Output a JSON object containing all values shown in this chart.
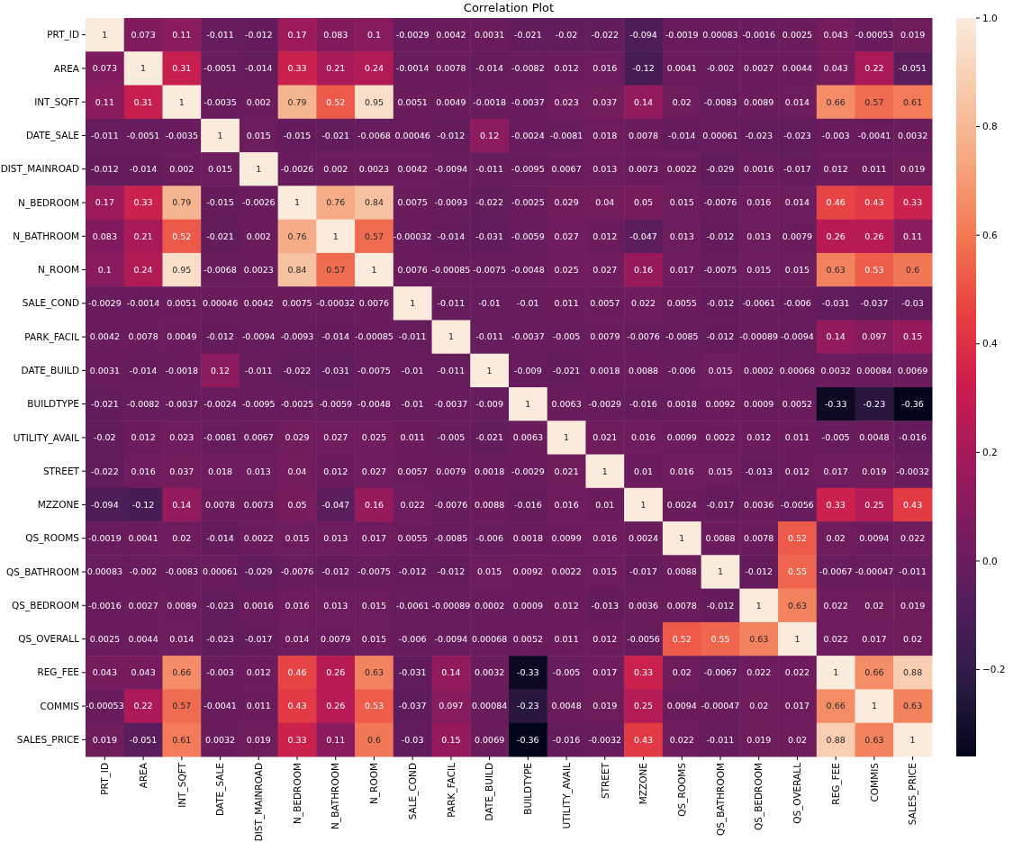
{
  "chart_data": {
    "type": "heatmap",
    "title": "Correlation Plot",
    "categories": [
      "PRT_ID",
      "AREA",
      "INT_SQFT",
      "DATE_SALE",
      "DIST_MAINROAD",
      "N_BEDROOM",
      "N_BATHROOM",
      "N_ROOM",
      "SALE_COND",
      "PARK_FACIL",
      "DATE_BUILD",
      "BUILDTYPE",
      "UTILITY_AVAIL",
      "STREET",
      "MZZONE",
      "QS_ROOMS",
      "QS_BATHROOM",
      "QS_BEDROOM",
      "QS_OVERALL",
      "REG_FEE",
      "COMMIS",
      "SALES_PRICE"
    ],
    "y_categories": [
      "PRT_ID",
      "AREA",
      "INT_SQFT",
      "DATE_SALE",
      "DIST_MAINROAD",
      "N_BEDROOM",
      "N_BATHROOM",
      "N_ROOM",
      "SALE_COND",
      "PARK_FACIL",
      "DATE_BUILD",
      "BUILDTYPE",
      "UTILITY_AVAIL",
      "STREET",
      "MZZONE",
      "QS_ROOMS",
      "QS_BATHROOM",
      "QS_BEDROOM",
      "QS_OVERALL",
      "REG_FEE",
      "COMMIS",
      "SALES_PRICE"
    ],
    "cells": [
      [
        1,
        0.073,
        0.11,
        -0.011,
        -0.012,
        0.17,
        0.083,
        0.1,
        -0.0029,
        0.0042,
        0.0031,
        -0.021,
        -0.02,
        -0.022,
        -0.094,
        -0.0019,
        0.00083,
        -0.0016,
        0.0025,
        0.043,
        -0.00053,
        0.019
      ],
      [
        0.073,
        1,
        0.31,
        -0.0051,
        -0.014,
        0.33,
        0.21,
        0.24,
        -0.0014,
        0.0078,
        -0.014,
        -0.0082,
        0.012,
        0.016,
        -0.12,
        0.0041,
        -0.002,
        0.0027,
        0.0044,
        0.043,
        0.22,
        -0.051
      ],
      [
        0.11,
        0.31,
        1,
        -0.0035,
        0.002,
        0.79,
        0.52,
        0.95,
        0.0051,
        0.0049,
        -0.0018,
        -0.0037,
        0.023,
        0.037,
        0.14,
        0.02,
        -0.0083,
        0.0089,
        0.014,
        0.66,
        0.57,
        0.61
      ],
      [
        -0.011,
        -0.0051,
        -0.0035,
        1,
        0.015,
        -0.015,
        -0.021,
        -0.0068,
        0.00046,
        -0.012,
        0.12,
        -0.0024,
        -0.0081,
        0.018,
        0.0078,
        -0.014,
        0.00061,
        -0.023,
        -0.023,
        -0.003,
        -0.0041,
        0.0032
      ],
      [
        -0.012,
        -0.014,
        0.002,
        0.015,
        1,
        -0.0026,
        0.002,
        0.0023,
        0.0042,
        -0.0094,
        -0.011,
        -0.0095,
        0.0067,
        0.013,
        0.0073,
        0.0022,
        -0.029,
        0.0016,
        -0.017,
        0.012,
        0.011,
        0.019
      ],
      [
        0.17,
        0.33,
        0.79,
        -0.015,
        -0.0026,
        1,
        0.76,
        0.84,
        0.0075,
        -0.0093,
        -0.022,
        -0.0025,
        0.029,
        0.04,
        0.05,
        0.015,
        -0.0076,
        0.016,
        0.014,
        0.46,
        0.43,
        0.33
      ],
      [
        0.083,
        0.21,
        0.52,
        -0.021,
        0.002,
        0.76,
        1,
        0.57,
        -0.00032,
        -0.014,
        -0.031,
        -0.0059,
        0.027,
        0.012,
        -0.047,
        0.013,
        -0.012,
        0.013,
        0.0079,
        0.26,
        0.26,
        0.11
      ],
      [
        0.1,
        0.24,
        0.95,
        -0.0068,
        0.0023,
        0.84,
        0.57,
        1,
        0.0076,
        -0.00085,
        -0.0075,
        -0.0048,
        0.025,
        0.027,
        0.16,
        0.017,
        -0.0075,
        0.015,
        0.015,
        0.63,
        0.53,
        0.6
      ],
      [
        -0.0029,
        -0.0014,
        0.0051,
        0.00046,
        0.0042,
        0.0075,
        -0.00032,
        0.0076,
        1,
        -0.011,
        -0.01,
        -0.01,
        0.011,
        0.0057,
        0.022,
        0.0055,
        -0.012,
        -0.0061,
        -0.006,
        -0.031,
        -0.037,
        -0.03
      ],
      [
        0.0042,
        0.0078,
        0.0049,
        -0.012,
        -0.0094,
        -0.0093,
        -0.014,
        -0.00085,
        -0.011,
        1,
        -0.011,
        -0.0037,
        -0.005,
        0.0079,
        -0.0076,
        -0.0085,
        -0.012,
        -0.00089,
        -0.0094,
        0.14,
        0.097,
        0.15
      ],
      [
        0.0031,
        -0.014,
        -0.0018,
        0.12,
        -0.011,
        -0.022,
        -0.031,
        -0.0075,
        -0.01,
        -0.011,
        1,
        -0.009,
        -0.021,
        0.0018,
        0.0088,
        -0.006,
        0.015,
        0.0002,
        0.00068,
        0.0032,
        0.00084,
        0.0069
      ],
      [
        -0.021,
        -0.0082,
        -0.0037,
        -0.0024,
        -0.0095,
        -0.0025,
        -0.0059,
        -0.0048,
        -0.01,
        -0.0037,
        -0.009,
        1,
        0.0063,
        -0.0029,
        -0.016,
        0.0018,
        0.0092,
        0.0009,
        0.0052,
        -0.33,
        -0.23,
        -0.36
      ],
      [
        -0.02,
        0.012,
        0.023,
        -0.0081,
        0.0067,
        0.029,
        0.027,
        0.025,
        0.011,
        -0.005,
        -0.021,
        0.0063,
        1,
        0.021,
        0.016,
        0.0099,
        0.0022,
        0.012,
        0.011,
        -0.005,
        0.0048,
        -0.016
      ],
      [
        -0.022,
        0.016,
        0.037,
        0.018,
        0.013,
        0.04,
        0.012,
        0.027,
        0.0057,
        0.0079,
        0.0018,
        -0.0029,
        0.021,
        1,
        0.01,
        0.016,
        0.015,
        -0.013,
        0.012,
        0.017,
        0.019,
        -0.0032
      ],
      [
        -0.094,
        -0.12,
        0.14,
        0.0078,
        0.0073,
        0.05,
        -0.047,
        0.16,
        0.022,
        -0.0076,
        0.0088,
        -0.016,
        0.016,
        0.01,
        1,
        0.0024,
        -0.017,
        0.0036,
        -0.0056,
        0.33,
        0.25,
        0.43
      ],
      [
        -0.0019,
        0.0041,
        0.02,
        -0.014,
        0.0022,
        0.015,
        0.013,
        0.017,
        0.0055,
        -0.0085,
        -0.006,
        0.0018,
        0.0099,
        0.016,
        0.0024,
        1,
        0.0088,
        0.0078,
        0.52,
        0.02,
        0.0094,
        0.022
      ],
      [
        0.00083,
        -0.002,
        -0.0083,
        0.00061,
        -0.029,
        -0.0076,
        -0.012,
        -0.0075,
        -0.012,
        -0.012,
        0.015,
        0.0092,
        0.0022,
        0.015,
        -0.017,
        0.0088,
        1,
        -0.012,
        0.55,
        -0.0067,
        -0.00047,
        -0.011
      ],
      [
        -0.0016,
        0.0027,
        0.0089,
        -0.023,
        0.0016,
        0.016,
        0.013,
        0.015,
        -0.0061,
        -0.00089,
        0.0002,
        0.0009,
        0.012,
        -0.013,
        0.0036,
        0.0078,
        -0.012,
        1,
        0.63,
        0.022,
        0.02,
        0.019
      ],
      [
        0.0025,
        0.0044,
        0.014,
        -0.023,
        -0.017,
        0.014,
        0.0079,
        0.015,
        -0.006,
        -0.0094,
        0.00068,
        0.0052,
        0.011,
        0.012,
        -0.0056,
        0.52,
        0.55,
        0.63,
        1,
        0.022,
        0.017,
        0.02
      ],
      [
        0.043,
        0.043,
        0.66,
        -0.003,
        0.012,
        0.46,
        0.26,
        0.63,
        -0.031,
        0.14,
        0.0032,
        -0.33,
        -0.005,
        0.017,
        0.33,
        0.02,
        -0.0067,
        0.022,
        0.022,
        1,
        0.66,
        0.88
      ],
      [
        -0.00053,
        0.22,
        0.57,
        -0.0041,
        0.011,
        0.43,
        0.26,
        0.53,
        -0.037,
        0.097,
        0.00084,
        -0.23,
        0.0048,
        0.019,
        0.25,
        0.0094,
        -0.00047,
        0.02,
        0.017,
        0.66,
        1,
        0.63
      ],
      [
        0.019,
        -0.051,
        0.61,
        0.0032,
        0.019,
        0.33,
        0.11,
        0.6,
        -0.03,
        0.15,
        0.0069,
        -0.36,
        -0.016,
        -0.0032,
        0.43,
        0.022,
        -0.011,
        0.019,
        0.02,
        0.88,
        0.63,
        1
      ]
    ],
    "data_labels": true,
    "clim": [
      -0.36,
      1
    ],
    "cticks": [
      {
        "value": -0.2,
        "label": "−0.2"
      },
      {
        "value": 0,
        "label": "0.0"
      },
      {
        "value": 0.2,
        "label": "0.2"
      },
      {
        "value": 0.4,
        "label": "0.4"
      },
      {
        "value": 0.6,
        "label": "0.6"
      },
      {
        "value": 0.8,
        "label": "0.8"
      },
      {
        "value": 1,
        "label": "1.0"
      }
    ]
  }
}
